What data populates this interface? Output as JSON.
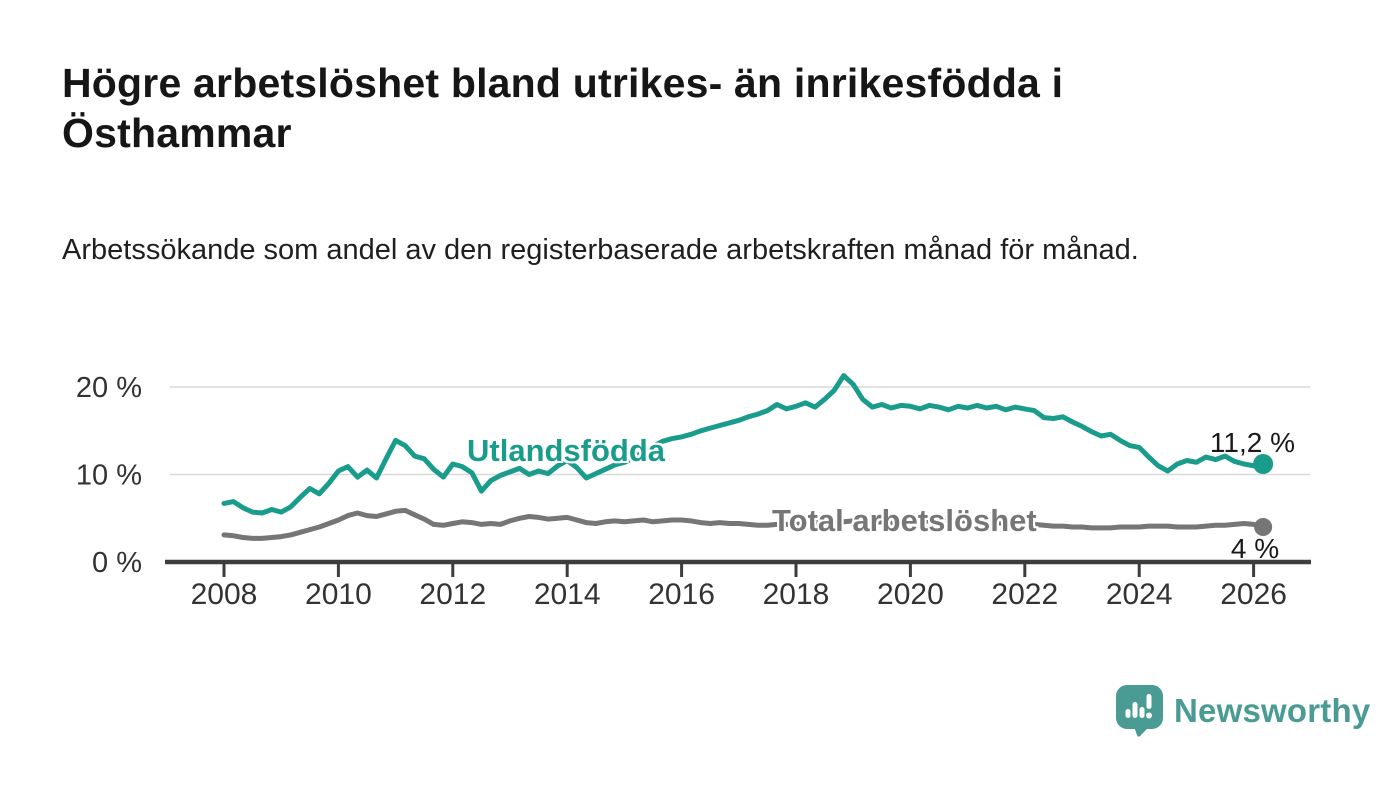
{
  "header": {
    "title": "Högre arbetslöshet bland utrikes- än inrikesfödda i Östhammar",
    "subtitle": "Arbetssökande som andel av den registerbaserade arbetskraften månad för månad."
  },
  "branding": {
    "name": "Newsworthy",
    "color": "#4a9b94",
    "icon": "bar-chart-speech-bubble"
  },
  "chart_data": {
    "type": "line",
    "title": "Högre arbetslöshet bland utrikes- än inrikesfödda i Östhammar",
    "subtitle": "Arbetssökande som andel av den registerbaserade arbetskraften månad för månad.",
    "unit": "%",
    "x_start": 2008.0,
    "x_step_years": 0.1666667,
    "xlim": [
      2008,
      2026.2
    ],
    "ylim": [
      0,
      22
    ],
    "grid": true,
    "grid_color": "#d9d9d9",
    "axis_color": "#3d3d3d",
    "tick_label_color": "#333333",
    "x_ticks": [
      2008,
      2010,
      2012,
      2014,
      2016,
      2018,
      2020,
      2022,
      2024,
      2026
    ],
    "y_ticks": [
      {
        "value": 20,
        "label": "20 %"
      },
      {
        "value": 10,
        "label": "10 %"
      },
      {
        "value": 0,
        "label": "0 %"
      }
    ],
    "series": [
      {
        "name": "Utlandsfödda",
        "color": "#1a9c8d",
        "end_label": "11,2 %",
        "end_value": 11.2,
        "values": [
          6.7,
          6.9,
          6.2,
          5.7,
          5.6,
          6.0,
          5.7,
          6.3,
          7.4,
          8.4,
          7.8,
          9.0,
          10.4,
          10.9,
          9.7,
          10.5,
          9.6,
          11.8,
          13.9,
          13.3,
          12.1,
          11.8,
          10.6,
          9.7,
          11.2,
          10.9,
          10.2,
          8.1,
          9.3,
          9.9,
          10.3,
          10.7,
          10.0,
          10.4,
          10.1,
          11.0,
          11.6,
          10.8,
          9.6,
          10.1,
          10.6,
          11.1,
          11.4,
          11.9,
          12.6,
          13.2,
          13.8,
          14.1,
          14.3,
          14.6,
          15.0,
          15.3,
          15.6,
          15.9,
          16.2,
          16.6,
          16.9,
          17.3,
          18.0,
          17.5,
          17.8,
          18.2,
          17.7,
          18.6,
          19.6,
          21.3,
          20.3,
          18.6,
          17.7,
          18.0,
          17.6,
          17.9,
          17.8,
          17.5,
          17.9,
          17.7,
          17.4,
          17.8,
          17.6,
          17.9,
          17.6,
          17.8,
          17.4,
          17.7,
          17.5,
          17.3,
          16.5,
          16.4,
          16.6,
          16.0,
          15.5,
          14.9,
          14.4,
          14.6,
          13.9,
          13.3,
          13.1,
          12.0,
          11.0,
          10.4,
          11.2,
          11.6,
          11.4,
          12.0,
          11.7,
          12.1,
          11.5,
          11.2,
          11.0,
          11.2
        ]
      },
      {
        "name": "Total arbetslöshet",
        "color": "#767676",
        "end_label": "4 %",
        "end_value": 4.0,
        "values": [
          3.1,
          3.0,
          2.8,
          2.7,
          2.7,
          2.8,
          2.9,
          3.1,
          3.4,
          3.7,
          4.0,
          4.4,
          4.8,
          5.3,
          5.6,
          5.3,
          5.2,
          5.5,
          5.8,
          5.9,
          5.4,
          4.9,
          4.3,
          4.2,
          4.4,
          4.6,
          4.5,
          4.3,
          4.4,
          4.3,
          4.7,
          5.0,
          5.2,
          5.1,
          4.9,
          5.0,
          5.1,
          4.8,
          4.5,
          4.4,
          4.6,
          4.7,
          4.6,
          4.7,
          4.8,
          4.6,
          4.7,
          4.8,
          4.8,
          4.7,
          4.5,
          4.4,
          4.5,
          4.4,
          4.4,
          4.3,
          4.2,
          4.2,
          4.3,
          4.3,
          4.3,
          4.4,
          4.5,
          4.5,
          4.6,
          4.6,
          4.7,
          4.6,
          4.5,
          4.6,
          4.5,
          4.5,
          4.5,
          4.6,
          4.7,
          4.8,
          4.7,
          4.7,
          4.7,
          4.6,
          4.5,
          4.5,
          4.4,
          4.4,
          4.4,
          4.3,
          4.2,
          4.1,
          4.1,
          4.0,
          4.0,
          3.9,
          3.9,
          3.9,
          4.0,
          4.0,
          4.0,
          4.1,
          4.1,
          4.1,
          4.0,
          4.0,
          4.0,
          4.1,
          4.2,
          4.2,
          4.3,
          4.4,
          4.3,
          4.0
        ]
      }
    ],
    "legend_position": "inline-labels"
  }
}
